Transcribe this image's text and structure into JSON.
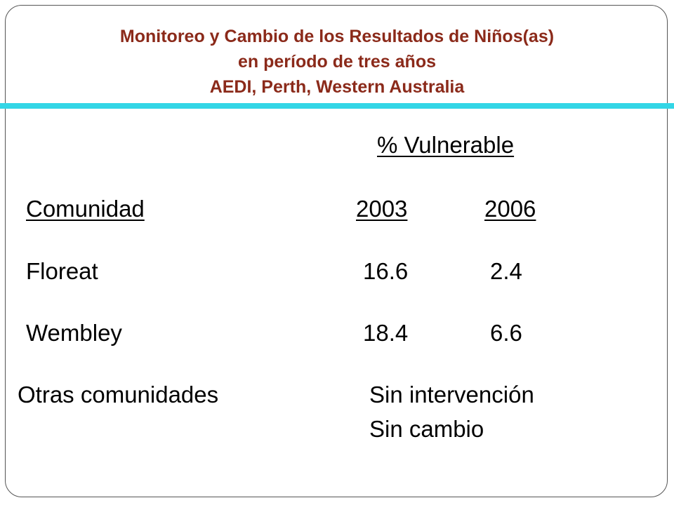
{
  "colors": {
    "title": "#8B2A1A",
    "divider": "#33D6E6",
    "border": "#555555",
    "text": "#000000"
  },
  "title": {
    "line1": "Monitoreo y Cambio de los Resultados de Niños(as)",
    "line2": "en período de tres años",
    "line3": "AEDI, Perth, Western Australia"
  },
  "table": {
    "group_header": "% Vulnerable",
    "headers": {
      "community": "Comunidad",
      "year1": "2003",
      "year2": "2006"
    },
    "rows": [
      {
        "community": "Floreat",
        "year1": "16.6",
        "year2": "2.4"
      },
      {
        "community": "Wembley",
        "year1": "18.4",
        "year2": "6.6"
      }
    ],
    "other": {
      "label": "Otras comunidades",
      "note1": "Sin intervención",
      "note2": "Sin cambio"
    }
  }
}
